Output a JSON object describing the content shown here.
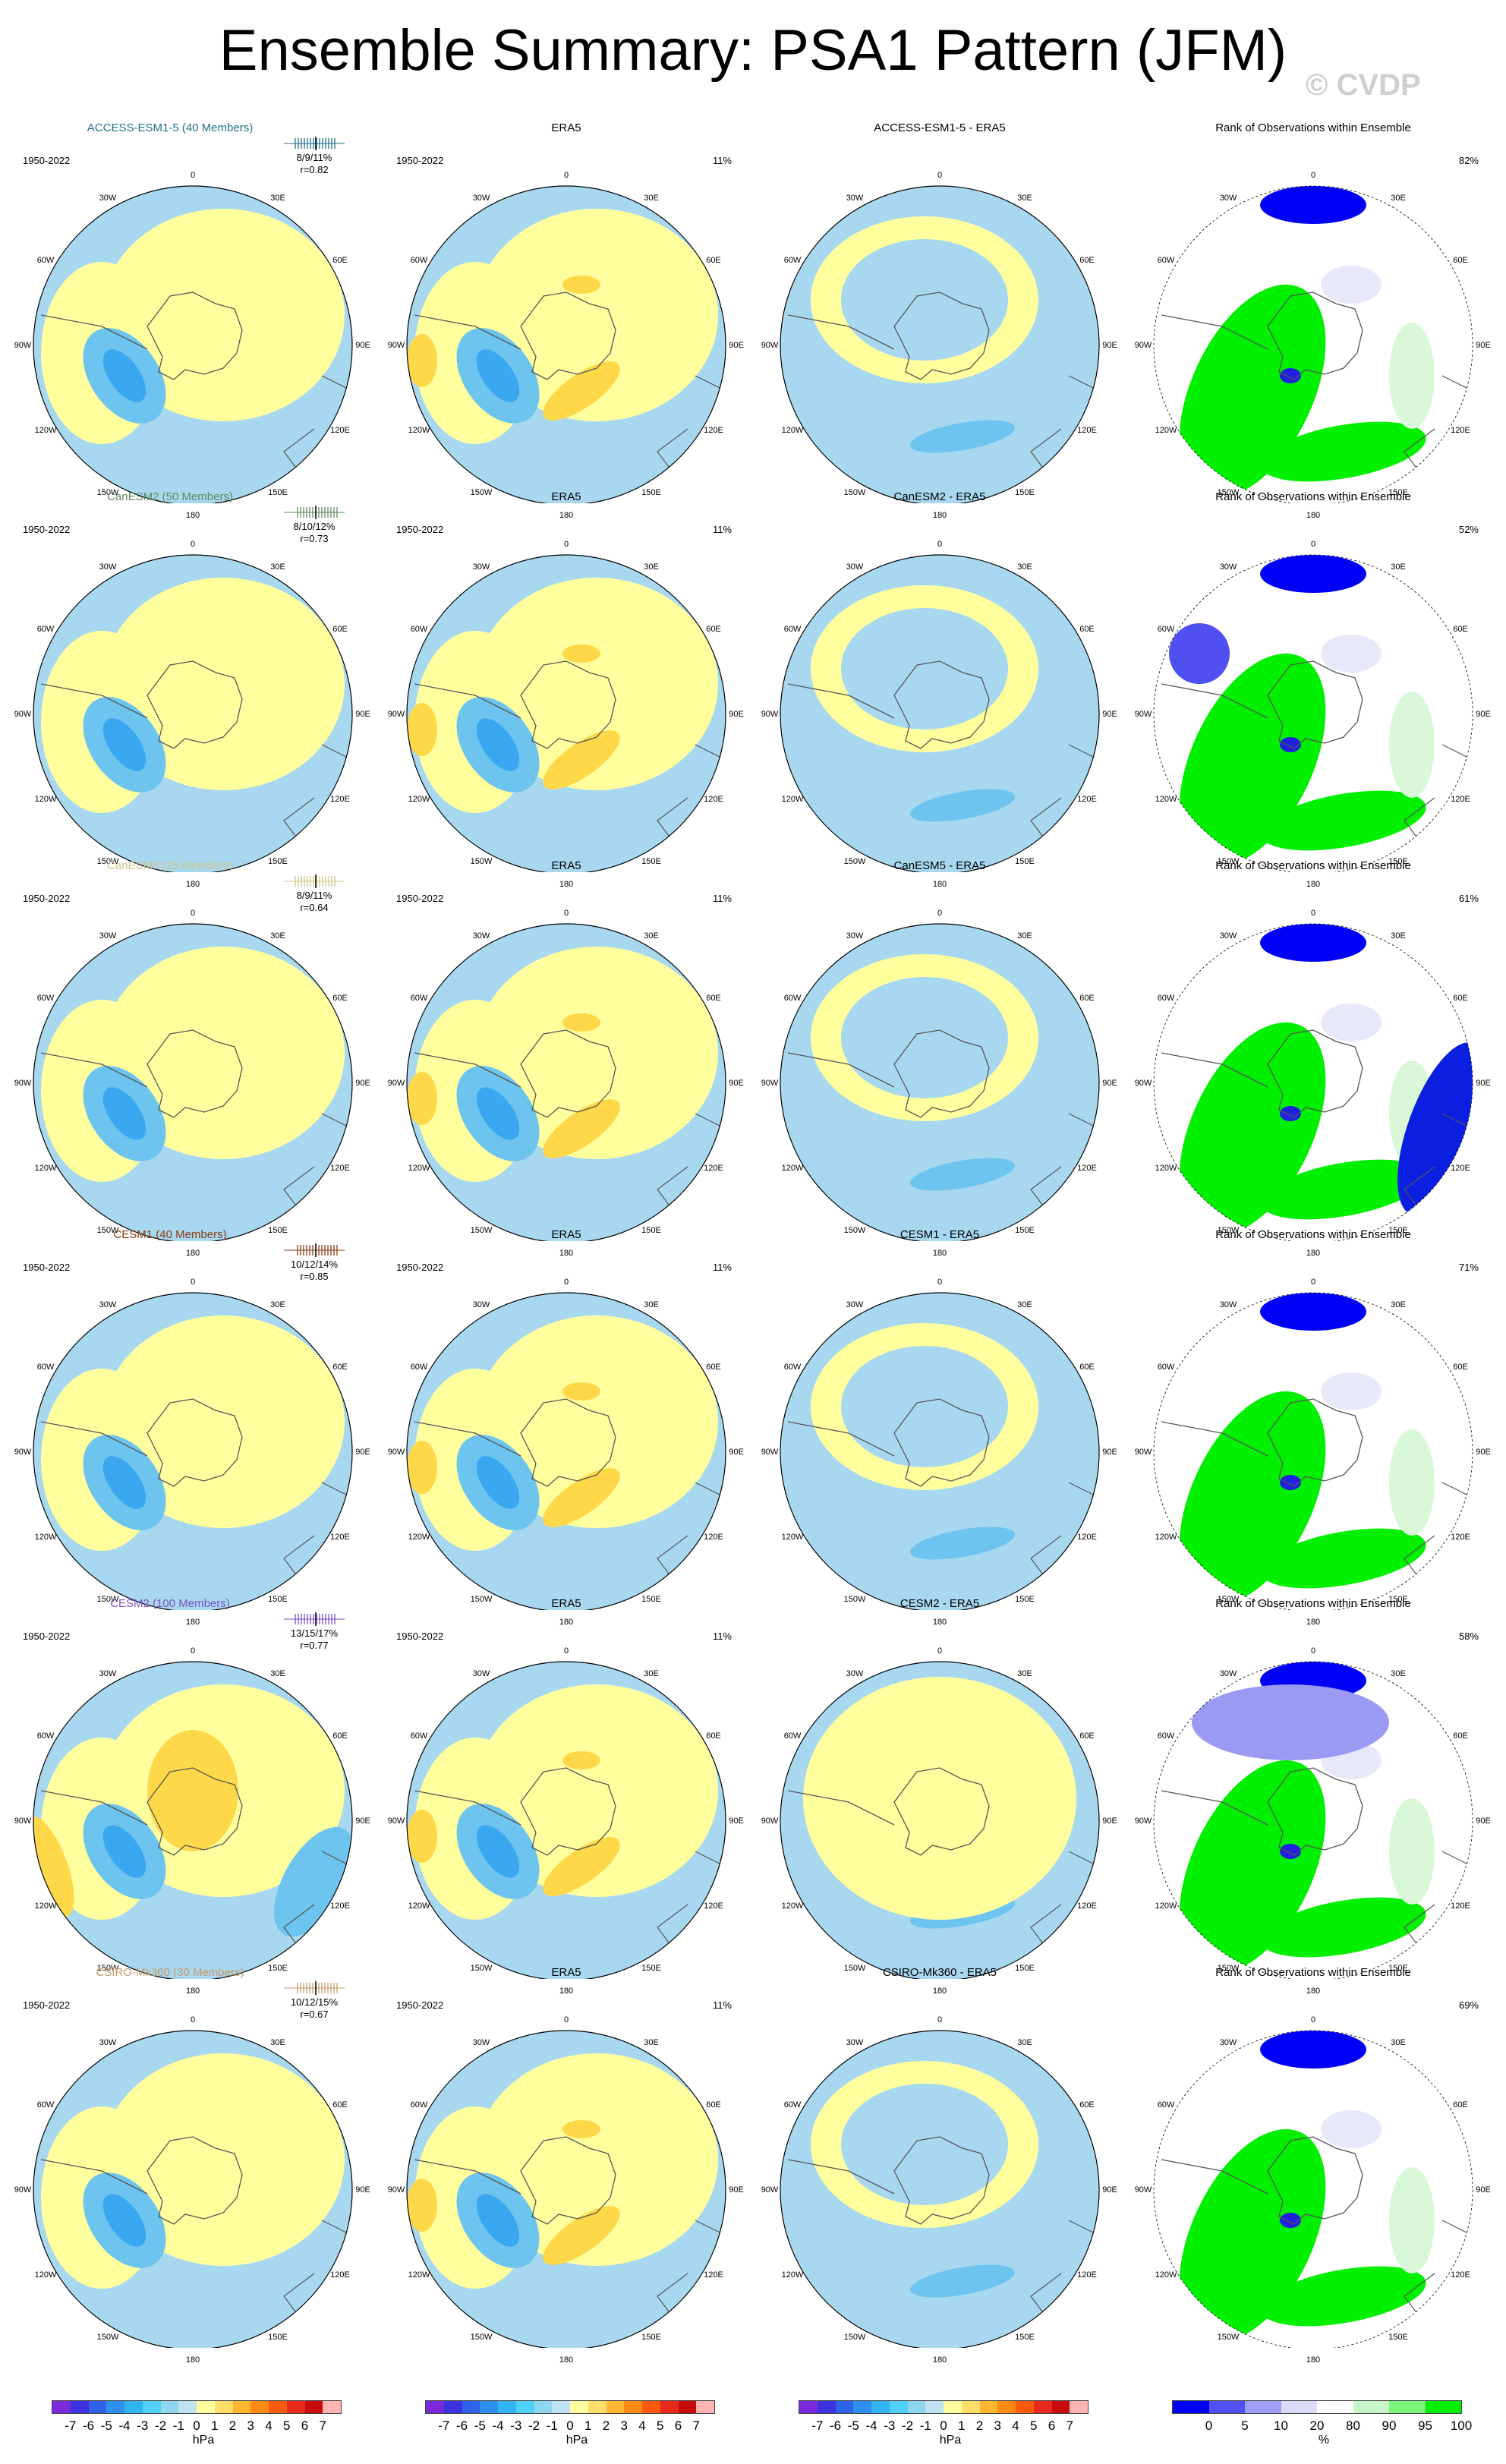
{
  "title": "Ensemble Summary: PSA1 Pattern (JFM)",
  "watermark": "© CVDP",
  "period": "1950-2022",
  "obs_name": "ERA5",
  "obs_pct": "11%",
  "rank_title": "Rank of Observations within Ensemble",
  "lon_labels": [
    "0",
    "30E",
    "60E",
    "90E",
    "120E",
    "150E",
    "180",
    "150W",
    "120W",
    "90W",
    "60W",
    "30W"
  ],
  "rows": [
    {
      "model": "ACCESS-ESM1-5",
      "members": 40,
      "title": "ACCESS-ESM1-5 (40 Members)",
      "color": "#1b6e8a",
      "pct": "8/9/11%",
      "r": "r=0.82",
      "diff_title": "ACCESS-ESM1-5 - ERA5",
      "rank_pct": "82%"
    },
    {
      "model": "CanESM2",
      "members": 50,
      "title": "CanESM2 (50 Members)",
      "color": "#5b8b5b",
      "pct": "8/10/12%",
      "r": "r=0.73",
      "diff_title": "CanESM2 - ERA5",
      "rank_pct": "52%"
    },
    {
      "model": "CanESM5",
      "members": 25,
      "title": "CanESM5 (25 Members)",
      "color": "#cfc58a",
      "pct": "8/9/11%",
      "r": "r=0.64",
      "diff_title": "CanESM5 - ERA5",
      "rank_pct": "61%"
    },
    {
      "model": "CESM1",
      "members": 40,
      "title": "CESM1 (40 Members)",
      "color": "#8b3a10",
      "pct": "10/12/14%",
      "r": "r=0.85",
      "diff_title": "CESM1 - ERA5",
      "rank_pct": "71%"
    },
    {
      "model": "CESM2",
      "members": 100,
      "title": "CESM2 (100 Members)",
      "color": "#7a52c4",
      "pct": "13/15/17%",
      "r": "r=0.77",
      "diff_title": "CESM2 - ERA5",
      "rank_pct": "58%"
    },
    {
      "model": "CSIRO-Mk360",
      "members": 30,
      "title": "CSIRO-Mk360 (30 Members)",
      "color": "#c69a6a",
      "pct": "10/12/15%",
      "r": "r=0.67",
      "diff_title": "CSIRO-Mk360 - ERA5",
      "rank_pct": "69%"
    }
  ],
  "colorbar_hpa": {
    "ticks": [
      "-7",
      "-6",
      "-5",
      "-4",
      "-3",
      "-2",
      "-1",
      "0",
      "1",
      "2",
      "3",
      "4",
      "5",
      "6",
      "7"
    ],
    "units": "hPa",
    "colors": [
      "#7a2ad8",
      "#3d32e0",
      "#2e62e8",
      "#2f8fef",
      "#30b5f2",
      "#4fd0f4",
      "#8dd7ef",
      "#bfe3f2",
      "#ffffa0",
      "#ffde6a",
      "#ffb633",
      "#ff8a10",
      "#ff5a0a",
      "#e8281a",
      "#c80c0c",
      "#ffb3b3"
    ]
  },
  "colorbar_rank": {
    "ticks": [
      "0",
      "5",
      "10",
      "20",
      "80",
      "90",
      "95",
      "100"
    ],
    "units": "%",
    "colors": [
      "#0000f5",
      "#5050f5",
      "#a0a0f5",
      "#dcdcf8",
      "#ffffff",
      "#c8f5c8",
      "#7af57a",
      "#00f000"
    ]
  },
  "chart_data": [
    {
      "type": "heatmap",
      "description": "PSA1 pattern composite maps (polar stereographic, Southern Hemisphere)",
      "units": "hPa",
      "value_ranges": [
        -7,
        7
      ],
      "ensemble_means": [
        {
          "model": "ACCESS-ESM1-5",
          "pct_variance": "8/9/11%",
          "pattern_correlation": 0.82,
          "obs_rank_pct": 82
        },
        {
          "model": "CanESM2",
          "pct_variance": "8/10/12%",
          "pattern_correlation": 0.73,
          "obs_rank_pct": 52
        },
        {
          "model": "CanESM5",
          "pct_variance": "8/9/11%",
          "pattern_correlation": 0.64,
          "obs_rank_pct": 61
        },
        {
          "model": "CESM1",
          "pct_variance": "10/12/14%",
          "pattern_correlation": 0.85,
          "obs_rank_pct": 71
        },
        {
          "model": "CESM2",
          "pct_variance": "13/15/17%",
          "pattern_correlation": 0.77,
          "obs_rank_pct": 58
        },
        {
          "model": "CSIRO-Mk360",
          "pct_variance": "10/12/15%",
          "pattern_correlation": 0.67,
          "obs_rank_pct": 69
        }
      ],
      "observations": {
        "name": "ERA5",
        "period": "1950-2022",
        "pct_variance": "11%"
      }
    }
  ]
}
